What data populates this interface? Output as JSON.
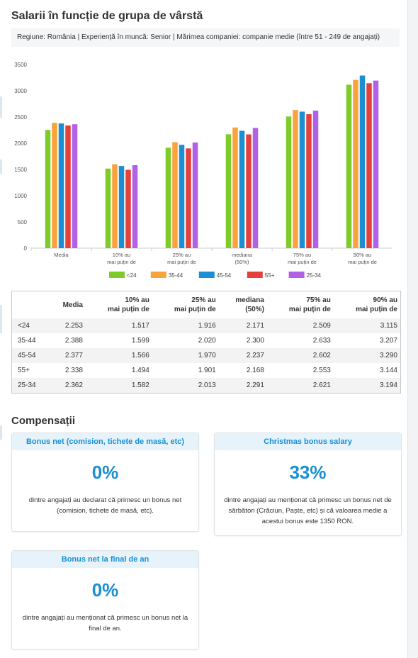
{
  "page_title": "Salarii în funcție de grupa de vârstă",
  "filters_text": "Regiune: România | Experiență în muncă: Senior | Mărimea companiei: companie medie (între 51 - 249 de angajați)",
  "chart_data": {
    "type": "bar",
    "categories": [
      [
        "Media"
      ],
      [
        "10% au",
        "mai puțin de"
      ],
      [
        "25% au",
        "mai puțin de"
      ],
      [
        "mediana",
        "(50%)"
      ],
      [
        "75% au",
        "mai puțin de"
      ],
      [
        "90% au",
        "mai puțin de"
      ]
    ],
    "series": [
      {
        "name": "<24",
        "color": "#7fcc28",
        "values": [
          2253,
          1517,
          1916,
          2171,
          2509,
          3115
        ]
      },
      {
        "name": "35-44",
        "color": "#f9a33c",
        "values": [
          2388,
          1599,
          2020,
          2300,
          2633,
          3207
        ]
      },
      {
        "name": "45-54",
        "color": "#1b8fd2",
        "values": [
          2377,
          1566,
          1970,
          2237,
          2602,
          3290
        ]
      },
      {
        "name": "55+",
        "color": "#e4413c",
        "values": [
          2338,
          1494,
          1901,
          2168,
          2553,
          3144
        ]
      },
      {
        "name": "25-34",
        "color": "#b061e6",
        "values": [
          2362,
          1582,
          2013,
          2291,
          2621,
          3194
        ]
      }
    ],
    "yticks": [
      0,
      500,
      1000,
      1500,
      2000,
      2500,
      3000,
      3500
    ],
    "ylim": [
      0,
      3500
    ],
    "legend_position": "bottom",
    "grid": false
  },
  "table": {
    "headers": [
      [
        ""
      ],
      [
        "Media"
      ],
      [
        "10% au",
        "mai puțin de"
      ],
      [
        "25% au",
        "mai puțin de"
      ],
      [
        "mediana",
        "(50%)"
      ],
      [
        "75% au",
        "mai puțin de"
      ],
      [
        "90% au",
        "mai puțin de"
      ]
    ],
    "rows": [
      [
        "<24",
        "2.253",
        "1.517",
        "1.916",
        "2.171",
        "2.509",
        "3.115"
      ],
      [
        "35-44",
        "2.388",
        "1.599",
        "2.020",
        "2.300",
        "2.633",
        "3.207"
      ],
      [
        "45-54",
        "2.377",
        "1.566",
        "1.970",
        "2.237",
        "2.602",
        "3.290"
      ],
      [
        "55+",
        "2.338",
        "1.494",
        "1.901",
        "2.168",
        "2.553",
        "3.144"
      ],
      [
        "25-34",
        "2.362",
        "1.582",
        "2.013",
        "2.291",
        "2.621",
        "3.194"
      ]
    ]
  },
  "compensations": {
    "title": "Compensații",
    "cards": [
      {
        "title": "Bonus net (comision, tichete de masă, etc)",
        "percent": "0%",
        "description": "dintre angajați au declarat că primesc un bonus net (comision, tichete de masă, etc)."
      },
      {
        "title": "Christmas bonus salary",
        "percent": "33%",
        "description": "dintre angajați au menționat că primesc un bonus net de sărbători (Crăciun, Paște, etc) și că valoarea medie a acestui bonus este 1350 RON."
      },
      {
        "title": "Bonus net la final de an",
        "percent": "0%",
        "description": "dintre angajați au menționat că primesc un bonus net la final de an."
      }
    ]
  }
}
